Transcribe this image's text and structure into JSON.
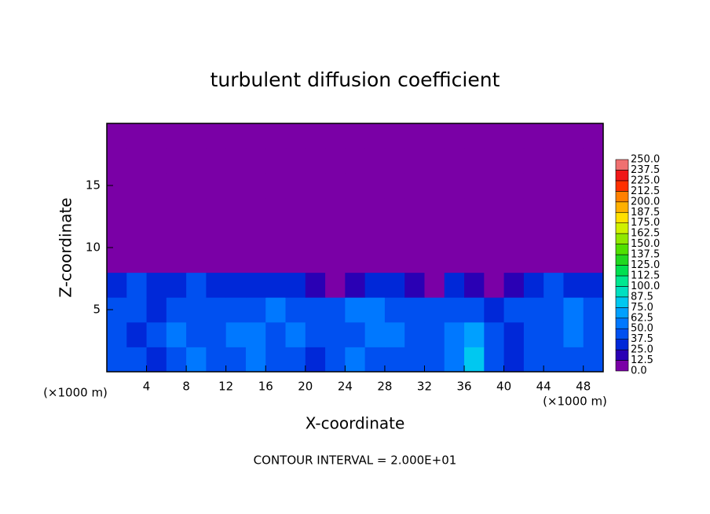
{
  "chart_data": {
    "type": "heatmap",
    "title": "turbulent diffusion coefficient",
    "x_label": "X-coordinate",
    "y_label": "Z-coordinate",
    "x_unit_labels": [
      "(×1000 m)",
      "(×1000 m)"
    ],
    "footnote": "CONTOUR INTERVAL = 2.000E+01",
    "xlim": [
      0,
      50
    ],
    "ylim": [
      0,
      20
    ],
    "xticks": [
      4,
      8,
      12,
      16,
      20,
      24,
      28,
      32,
      36,
      40,
      44,
      48
    ],
    "yticks": [
      5,
      10,
      15
    ],
    "x": [
      1,
      3,
      5,
      7,
      9,
      11,
      13,
      15,
      17,
      19,
      21,
      23,
      25,
      27,
      29,
      31,
      33,
      35,
      37,
      39,
      41,
      43,
      45,
      47,
      49
    ],
    "y": [
      1,
      3,
      5,
      7,
      9,
      11,
      13,
      15,
      17,
      19
    ],
    "z": [
      [
        40,
        45,
        35,
        40,
        50,
        45,
        40,
        55,
        45,
        40,
        35,
        45,
        50,
        40,
        45,
        40,
        45,
        55,
        75,
        45,
        35,
        40,
        45,
        40,
        45
      ],
      [
        40,
        35,
        45,
        50,
        40,
        45,
        55,
        50,
        45,
        50,
        45,
        40,
        45,
        50,
        55,
        45,
        40,
        60,
        70,
        40,
        35,
        40,
        45,
        50,
        40
      ],
      [
        45,
        40,
        35,
        45,
        40,
        45,
        40,
        45,
        50,
        45,
        40,
        45,
        50,
        55,
        45,
        45,
        40,
        45,
        40,
        35,
        40,
        45,
        40,
        50,
        45
      ],
      [
        35,
        40,
        30,
        35,
        40,
        30,
        35,
        30,
        25,
        30,
        15,
        10,
        20,
        25,
        30,
        20,
        10,
        25,
        20,
        10,
        15,
        35,
        40,
        35,
        30
      ],
      [
        0,
        0,
        0,
        0,
        0,
        0,
        0,
        0,
        0,
        0,
        0,
        0,
        0,
        0,
        0,
        0,
        0,
        0,
        0,
        0,
        0,
        0,
        5,
        0,
        0
      ],
      [
        0,
        0,
        0,
        0,
        0,
        0,
        0,
        0,
        0,
        0,
        0,
        0,
        0,
        0,
        0,
        0,
        0,
        0,
        0,
        0,
        0,
        0,
        0,
        0,
        0
      ],
      [
        0,
        0,
        0,
        0,
        0,
        0,
        0,
        0,
        0,
        0,
        0,
        0,
        0,
        0,
        0,
        0,
        0,
        0,
        0,
        0,
        0,
        0,
        0,
        0,
        0
      ],
      [
        0,
        0,
        0,
        0,
        0,
        0,
        0,
        0,
        0,
        0,
        0,
        0,
        0,
        0,
        0,
        0,
        0,
        0,
        0,
        0,
        0,
        0,
        0,
        0,
        0
      ],
      [
        0,
        0,
        0,
        0,
        0,
        0,
        0,
        0,
        0,
        0,
        0,
        0,
        0,
        0,
        0,
        0,
        0,
        0,
        0,
        0,
        0,
        0,
        0,
        0,
        0
      ],
      [
        0,
        0,
        0,
        0,
        0,
        0,
        0,
        0,
        0,
        0,
        0,
        0,
        0,
        0,
        0,
        0,
        0,
        0,
        0,
        0,
        0,
        0,
        0,
        0,
        0
      ]
    ],
    "levels": [
      {
        "value": 0,
        "label": "0.0"
      },
      12.5,
      {
        "value": 25,
        "label": "25.0"
      },
      37.5,
      {
        "value": 50,
        "label": "50.0"
      },
      62.5,
      {
        "value": 75,
        "label": "75.0"
      },
      87.5,
      {
        "value": 100,
        "label": "100.0"
      },
      112.5,
      {
        "value": 125,
        "label": "125.0"
      },
      137.5,
      {
        "value": 150,
        "label": "150.0"
      },
      162.5,
      {
        "value": 175,
        "label": "175.0"
      },
      187.5,
      {
        "value": 200,
        "label": "200.0"
      },
      212.5,
      {
        "value": 225,
        "label": "225.0"
      },
      237.5,
      {
        "value": 250,
        "label": "250.0"
      }
    ],
    "colors": [
      "#7a00a6",
      "#2a00b4",
      "#0028d8",
      "#0050f0",
      "#0078ff",
      "#00a0ff",
      "#00c8f0",
      "#00e0c0",
      "#00e890",
      "#00e050",
      "#20d820",
      "#50e000",
      "#90e800",
      "#d0f000",
      "#ffe000",
      "#ffb000",
      "#ff8000",
      "#ff3000",
      "#f01818",
      "#f07070"
    ]
  }
}
